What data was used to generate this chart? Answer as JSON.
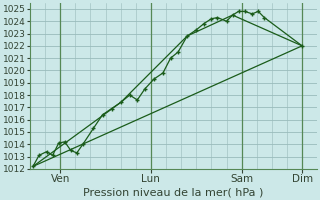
{
  "background_color": "#cce8e8",
  "grid_color": "#99bbbb",
  "line_color": "#1a5c1a",
  "xlabel": "Pression niveau de la mer( hPa )",
  "ylim": [
    1012,
    1025.5
  ],
  "yticks": [
    1012,
    1013,
    1014,
    1015,
    1016,
    1017,
    1018,
    1019,
    1020,
    1021,
    1022,
    1023,
    1024,
    1025
  ],
  "xtick_labels": [
    "Ven",
    "Lun",
    "Sam",
    "Dim"
  ],
  "xtick_positions": [
    1,
    4,
    7,
    9
  ],
  "xlim": [
    0,
    9.5
  ],
  "line1_x": [
    0.1,
    0.3,
    0.55,
    0.75,
    0.95,
    1.15,
    1.35,
    1.55,
    1.75,
    2.1,
    2.4,
    2.7,
    3.0,
    3.3,
    3.55,
    3.8,
    4.1,
    4.4,
    4.65,
    4.9,
    5.2,
    5.5,
    5.75,
    6.0,
    6.2,
    6.5,
    6.7,
    6.9,
    7.1,
    7.35,
    7.55,
    7.75,
    9.0
  ],
  "line1_y": [
    1012.2,
    1013.1,
    1013.4,
    1013.1,
    1014.1,
    1014.2,
    1013.5,
    1013.3,
    1014.0,
    1015.3,
    1016.4,
    1016.9,
    1017.4,
    1018.0,
    1017.6,
    1018.5,
    1019.3,
    1019.8,
    1021.0,
    1021.5,
    1022.8,
    1023.3,
    1023.8,
    1024.2,
    1024.3,
    1024.0,
    1024.5,
    1024.8,
    1024.8,
    1024.6,
    1024.8,
    1024.3,
    1022.0
  ],
  "line2_x": [
    0.1,
    3.0,
    5.2,
    6.7,
    9.0
  ],
  "line2_y": [
    1012.2,
    1017.4,
    1022.8,
    1024.5,
    1022.0
  ],
  "line3_x": [
    0.1,
    9.0
  ],
  "line3_y": [
    1012.2,
    1022.0
  ],
  "vline_positions": [
    1.0,
    4.0,
    7.0,
    9.0
  ],
  "xlabel_fontsize": 8,
  "ytick_fontsize": 6.5,
  "xtick_fontsize": 7.5
}
